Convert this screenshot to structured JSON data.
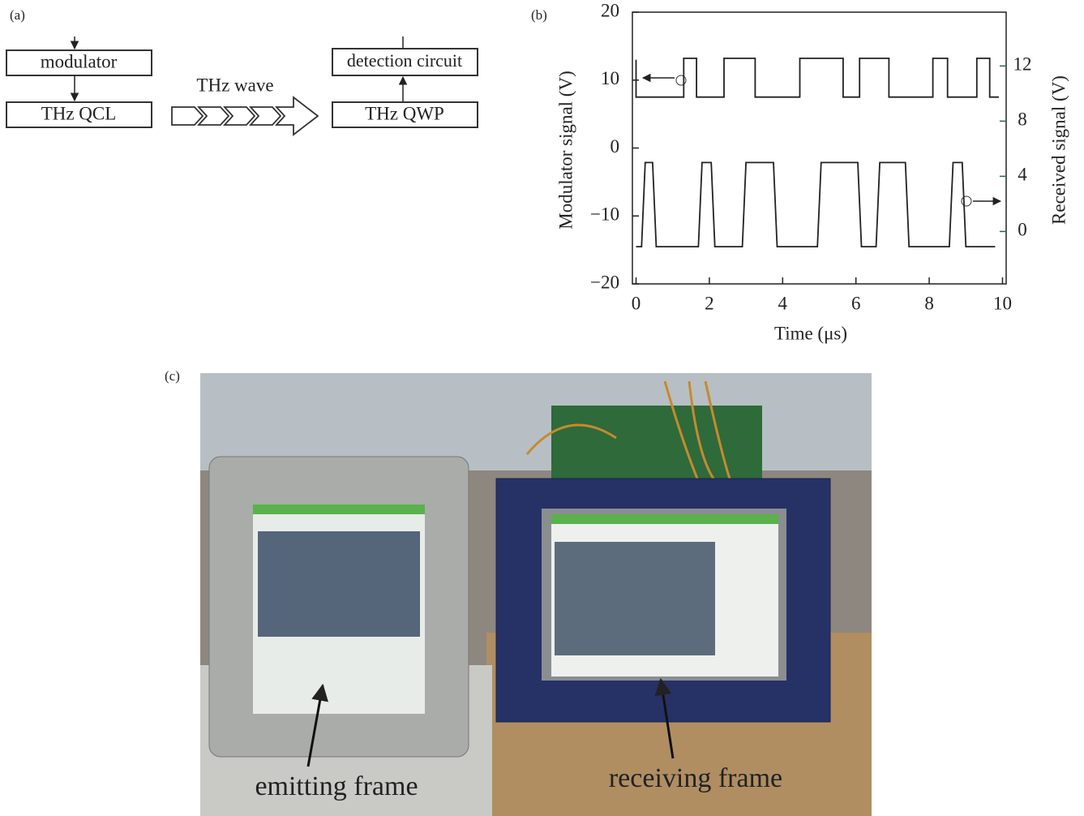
{
  "labels": [
    "(a)",
    "(b)",
    "(c)"
  ],
  "diagram": {
    "nodes": [
      "modulator",
      "THz QCL",
      "detection circuit",
      "THz QWP"
    ],
    "edge_label": "THz wave"
  },
  "chart_data": {
    "type": "line",
    "xlabel": "Time (μs)",
    "ylabel": "Modulator signal (V)",
    "y2label": "Received signal (V)",
    "xlim": [
      -0.1,
      10.1
    ],
    "xticks": [
      0,
      2,
      4,
      6,
      8,
      10
    ],
    "ylim": [
      -20,
      20
    ],
    "yticks": [
      {
        "value": -20,
        "label": "−20"
      },
      {
        "value": -10,
        "label": "−10"
      },
      0,
      10,
      20
    ],
    "y2lim": [
      -3.8,
      15.9
    ],
    "y2ticks": [
      0,
      4,
      8,
      12
    ],
    "series": [
      {
        "color": "#222222",
        "x": [
          0,
          0,
          1.3,
          1.3,
          1.65,
          1.65,
          2.4,
          2.4,
          3.25,
          3.25,
          4.47,
          4.47,
          5.65,
          5.65,
          6.1,
          6.1,
          6.9,
          6.9,
          8.1,
          8.1,
          8.5,
          8.5,
          9.3,
          9.3,
          9.65,
          9.65,
          9.9
        ],
        "values": [
          13,
          7.5,
          7.5,
          13.2,
          13.2,
          7.5,
          7.5,
          13.2,
          13.2,
          7.5,
          7.5,
          13.2,
          13.2,
          7.5,
          7.5,
          13.2,
          13.2,
          7.5,
          7.5,
          13.2,
          13.2,
          7.5,
          7.5,
          13.2,
          13.2,
          7.5,
          7.5
        ]
      },
      {
        "color": "#222222",
        "axis": "y2",
        "x": [
          0,
          0.15,
          0.25,
          0.45,
          0.55,
          1.7,
          1.8,
          2.05,
          2.15,
          2.9,
          3.0,
          3.75,
          3.85,
          4.95,
          5.05,
          6.05,
          6.15,
          6.55,
          6.65,
          7.35,
          7.45,
          8.55,
          8.65,
          8.9,
          9.0,
          9.8
        ],
        "values": [
          -1.1,
          -1.1,
          5.0,
          5.0,
          -1.1,
          -1.1,
          5.0,
          5.0,
          -1.1,
          -1.1,
          5.0,
          5.0,
          -1.1,
          -1.1,
          5.0,
          5.0,
          -1.1,
          -1.1,
          5.0,
          5.0,
          -1.1,
          -1.1,
          5.0,
          5.0,
          -1.1,
          -1.1
        ]
      }
    ]
  },
  "photo": {
    "annotations": [
      "emitting frame",
      "receiving frame"
    ]
  }
}
